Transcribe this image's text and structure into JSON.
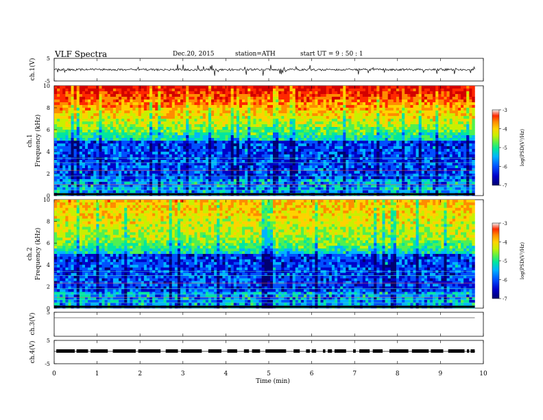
{
  "header": {
    "title": "VLF  Spectra",
    "date": "Dec.20, 2015",
    "station": "station=ATH",
    "start": "start  UT  =   9  : 50 : 1"
  },
  "chart_data": [
    {
      "type": "line",
      "name": "ch1-waveform",
      "ylabel": "ch.1(V)",
      "ylim": [
        -5,
        5
      ],
      "yticks": [
        "5",
        "-5"
      ],
      "xlim": [
        0,
        10
      ]
    },
    {
      "type": "heatmap",
      "name": "ch1-spectrogram",
      "ylabel_line1": "ch.1",
      "ylabel_line2": "Frequency  (kHz)",
      "ylim": [
        0,
        10
      ],
      "yticks": [
        "0",
        "2",
        "4",
        "6",
        "8",
        "10"
      ],
      "xlim": [
        0,
        9.8
      ],
      "colorbar": {
        "label": "log(PSD(V²/Hz)",
        "range": [
          -7,
          -3
        ],
        "ticks": [
          "-3",
          "-4",
          "-5",
          "-6",
          "-7"
        ]
      },
      "colormap": [
        "#000070",
        "#0000c8",
        "#0050ff",
        "#00b4ff",
        "#00e6a0",
        "#50f050",
        "#c8f000",
        "#ffd200",
        "#ff8c00",
        "#ff2800",
        "#d20000"
      ]
    },
    {
      "type": "heatmap",
      "name": "ch2-spectrogram",
      "ylabel_line1": "ch.2",
      "ylabel_line2": "Frequency  (kHz)",
      "ylim": [
        0,
        10
      ],
      "yticks": [
        "0",
        "2",
        "4",
        "6",
        "8",
        "10"
      ],
      "xlim": [
        0,
        9.8
      ],
      "colorbar": {
        "label": "log(PSD(V²/Hz)",
        "range": [
          -7,
          -3
        ],
        "ticks": [
          "-3",
          "-4",
          "-5",
          "-6",
          "-7"
        ]
      }
    },
    {
      "type": "line",
      "name": "ch3-waveform",
      "ylabel": "ch.3(V)",
      "ylim": [
        -5,
        5
      ],
      "yticks": [
        "5"
      ],
      "xlim": [
        0,
        10
      ]
    },
    {
      "type": "line",
      "name": "ch4-waveform",
      "ylabel": "ch.4(V)",
      "ylim": [
        -5,
        5
      ],
      "yticks": [
        "5",
        "-5"
      ],
      "xlim": [
        0,
        10
      ]
    }
  ],
  "x_axis": {
    "label": "Time  (min)",
    "ticks": [
      "0",
      "1",
      "2",
      "3",
      "4",
      "5",
      "6",
      "7",
      "8",
      "9",
      "10"
    ]
  }
}
